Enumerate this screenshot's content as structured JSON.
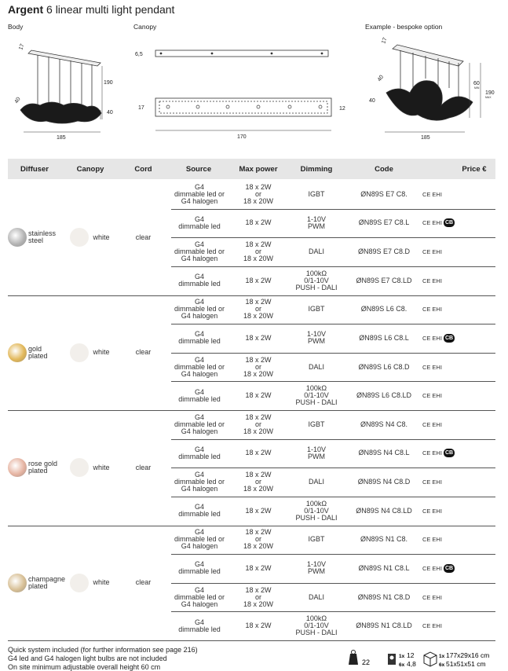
{
  "header": {
    "brand": "Argent",
    "title": "6 linear multi light pendant"
  },
  "drawings": {
    "body": {
      "label": "Body",
      "dims": [
        "17",
        "190",
        "40",
        "40",
        "185"
      ]
    },
    "canopy": {
      "label": "Canopy",
      "dims": [
        "6,5",
        "17",
        "12",
        "170"
      ]
    },
    "example": {
      "label": "Example - bespoke option",
      "dims": [
        "17",
        "40",
        "40",
        "60",
        "MIN",
        "190",
        "MAX",
        "185"
      ]
    }
  },
  "table": {
    "columns": [
      "Diffuser",
      "Canopy",
      "Cord",
      "Source",
      "Max power",
      "Dimming",
      "Code",
      "Price €"
    ],
    "groups": [
      {
        "diffuser": "stainless\nsteel",
        "diffuser_color": "#b4b4b4",
        "canopy": "white",
        "cord": "clear",
        "rows": [
          {
            "source": "G4\ndimmable led or\nG4 halogen",
            "power": "18 x 2W\nor\n18 x 20W",
            "dimming": "IGBT",
            "code": "ØN89S E7 C8.",
            "certs": [
              "CE",
              "EHI"
            ]
          },
          {
            "source": "G4\ndimmable led",
            "power": "18 x 2W",
            "dimming": "1-10V\nPWM",
            "code": "ØN89S E7 C8.L",
            "certs": [
              "CE",
              "EHI",
              "CB"
            ]
          },
          {
            "source": "G4\ndimmable led or\nG4 halogen",
            "power": "18 x 2W\nor\n18 x 20W",
            "dimming": "DALI",
            "code": "ØN89S E7 C8.D",
            "certs": [
              "CE",
              "EHI"
            ]
          },
          {
            "source": "G4\ndimmable led",
            "power": "18 x 2W",
            "dimming": "100kΩ\n0/1-10V\nPUSH - DALI",
            "code": "ØN89S E7 C8.LD",
            "certs": [
              "CE",
              "EHI"
            ]
          }
        ]
      },
      {
        "diffuser": "gold\nplated",
        "diffuser_color": "#e2b85a",
        "canopy": "white",
        "cord": "clear",
        "rows": [
          {
            "source": "G4\ndimmable led or\nG4 halogen",
            "power": "18 x 2W\nor\n18 x 20W",
            "dimming": "IGBT",
            "code": "ØN89S L6 C8.",
            "certs": [
              "CE",
              "EHI"
            ]
          },
          {
            "source": "G4\ndimmable led",
            "power": "18 x 2W",
            "dimming": "1-10V\nPWM",
            "code": "ØN89S L6 C8.L",
            "certs": [
              "CE",
              "EHI",
              "CB"
            ]
          },
          {
            "source": "G4\ndimmable led or\nG4 halogen",
            "power": "18 x 2W\nor\n18 x 20W",
            "dimming": "DALI",
            "code": "ØN89S L6 C8.D",
            "certs": [
              "CE",
              "EHI"
            ]
          },
          {
            "source": "G4\ndimmable led",
            "power": "18 x 2W",
            "dimming": "100kΩ\n0/1-10V\nPUSH - DALI",
            "code": "ØN89S L6 C8.LD",
            "certs": [
              "CE",
              "EHI"
            ]
          }
        ]
      },
      {
        "diffuser": "rose gold\nplated",
        "diffuser_color": "#e6b4a2",
        "canopy": "white",
        "cord": "clear",
        "rows": [
          {
            "source": "G4\ndimmable led or\nG4 halogen",
            "power": "18 x 2W\nor\n18 x 20W",
            "dimming": "IGBT",
            "code": "ØN89S N4 C8.",
            "certs": [
              "CE",
              "EHI"
            ]
          },
          {
            "source": "G4\ndimmable led",
            "power": "18 x 2W",
            "dimming": "1-10V\nPWM",
            "code": "ØN89S N4 C8.L",
            "certs": [
              "CE",
              "EHI",
              "CB"
            ]
          },
          {
            "source": "G4\ndimmable led or\nG4 halogen",
            "power": "18 x 2W\nor\n18 x 20W",
            "dimming": "DALI",
            "code": "ØN89S N4 C8.D",
            "certs": [
              "CE",
              "EHI"
            ]
          },
          {
            "source": "G4\ndimmable led",
            "power": "18 x 2W",
            "dimming": "100kΩ\n0/1-10V\nPUSH - DALI",
            "code": "ØN89S N4 C8.LD",
            "certs": [
              "CE",
              "EHI"
            ]
          }
        ]
      },
      {
        "diffuser": "champagne\nplated",
        "diffuser_color": "#d8c096",
        "canopy": "white",
        "cord": "clear",
        "rows": [
          {
            "source": "G4\ndimmable led or\nG4 halogen",
            "power": "18 x 2W\nor\n18 x 20W",
            "dimming": "IGBT",
            "code": "ØN89S N1 C8.",
            "certs": [
              "CE",
              "EHI"
            ]
          },
          {
            "source": "G4\ndimmable led",
            "power": "18 x 2W",
            "dimming": "1-10V\nPWM",
            "code": "ØN89S N1 C8.L",
            "certs": [
              "CE",
              "EHI",
              "CB"
            ]
          },
          {
            "source": "G4\ndimmable led or\nG4 halogen",
            "power": "18 x 2W\nor\n18 x 20W",
            "dimming": "DALI",
            "code": "ØN89S N1 C8.D",
            "certs": [
              "CE",
              "EHI"
            ]
          },
          {
            "source": "G4\ndimmable led",
            "power": "18 x 2W",
            "dimming": "100kΩ\n0/1-10V\nPUSH - DALI",
            "code": "ØN89S N1 C8.LD",
            "certs": [
              "CE",
              "EHI"
            ]
          }
        ]
      }
    ]
  },
  "footer": {
    "notes": [
      "Quick system included (for further information see page 216)",
      "G4 led and G4 halogen light bulbs are not included",
      "On site minimum adjustable overall height 60 cm"
    ],
    "weight": "22",
    "bulbs": [
      {
        "qty": "1x",
        "value": "12"
      },
      {
        "qty": "6x",
        "value": "4,8"
      }
    ],
    "boxes": [
      {
        "qty": "1x",
        "value": "177x29x16 cm"
      },
      {
        "qty": "6x",
        "value": "51x51x51 cm"
      }
    ]
  }
}
